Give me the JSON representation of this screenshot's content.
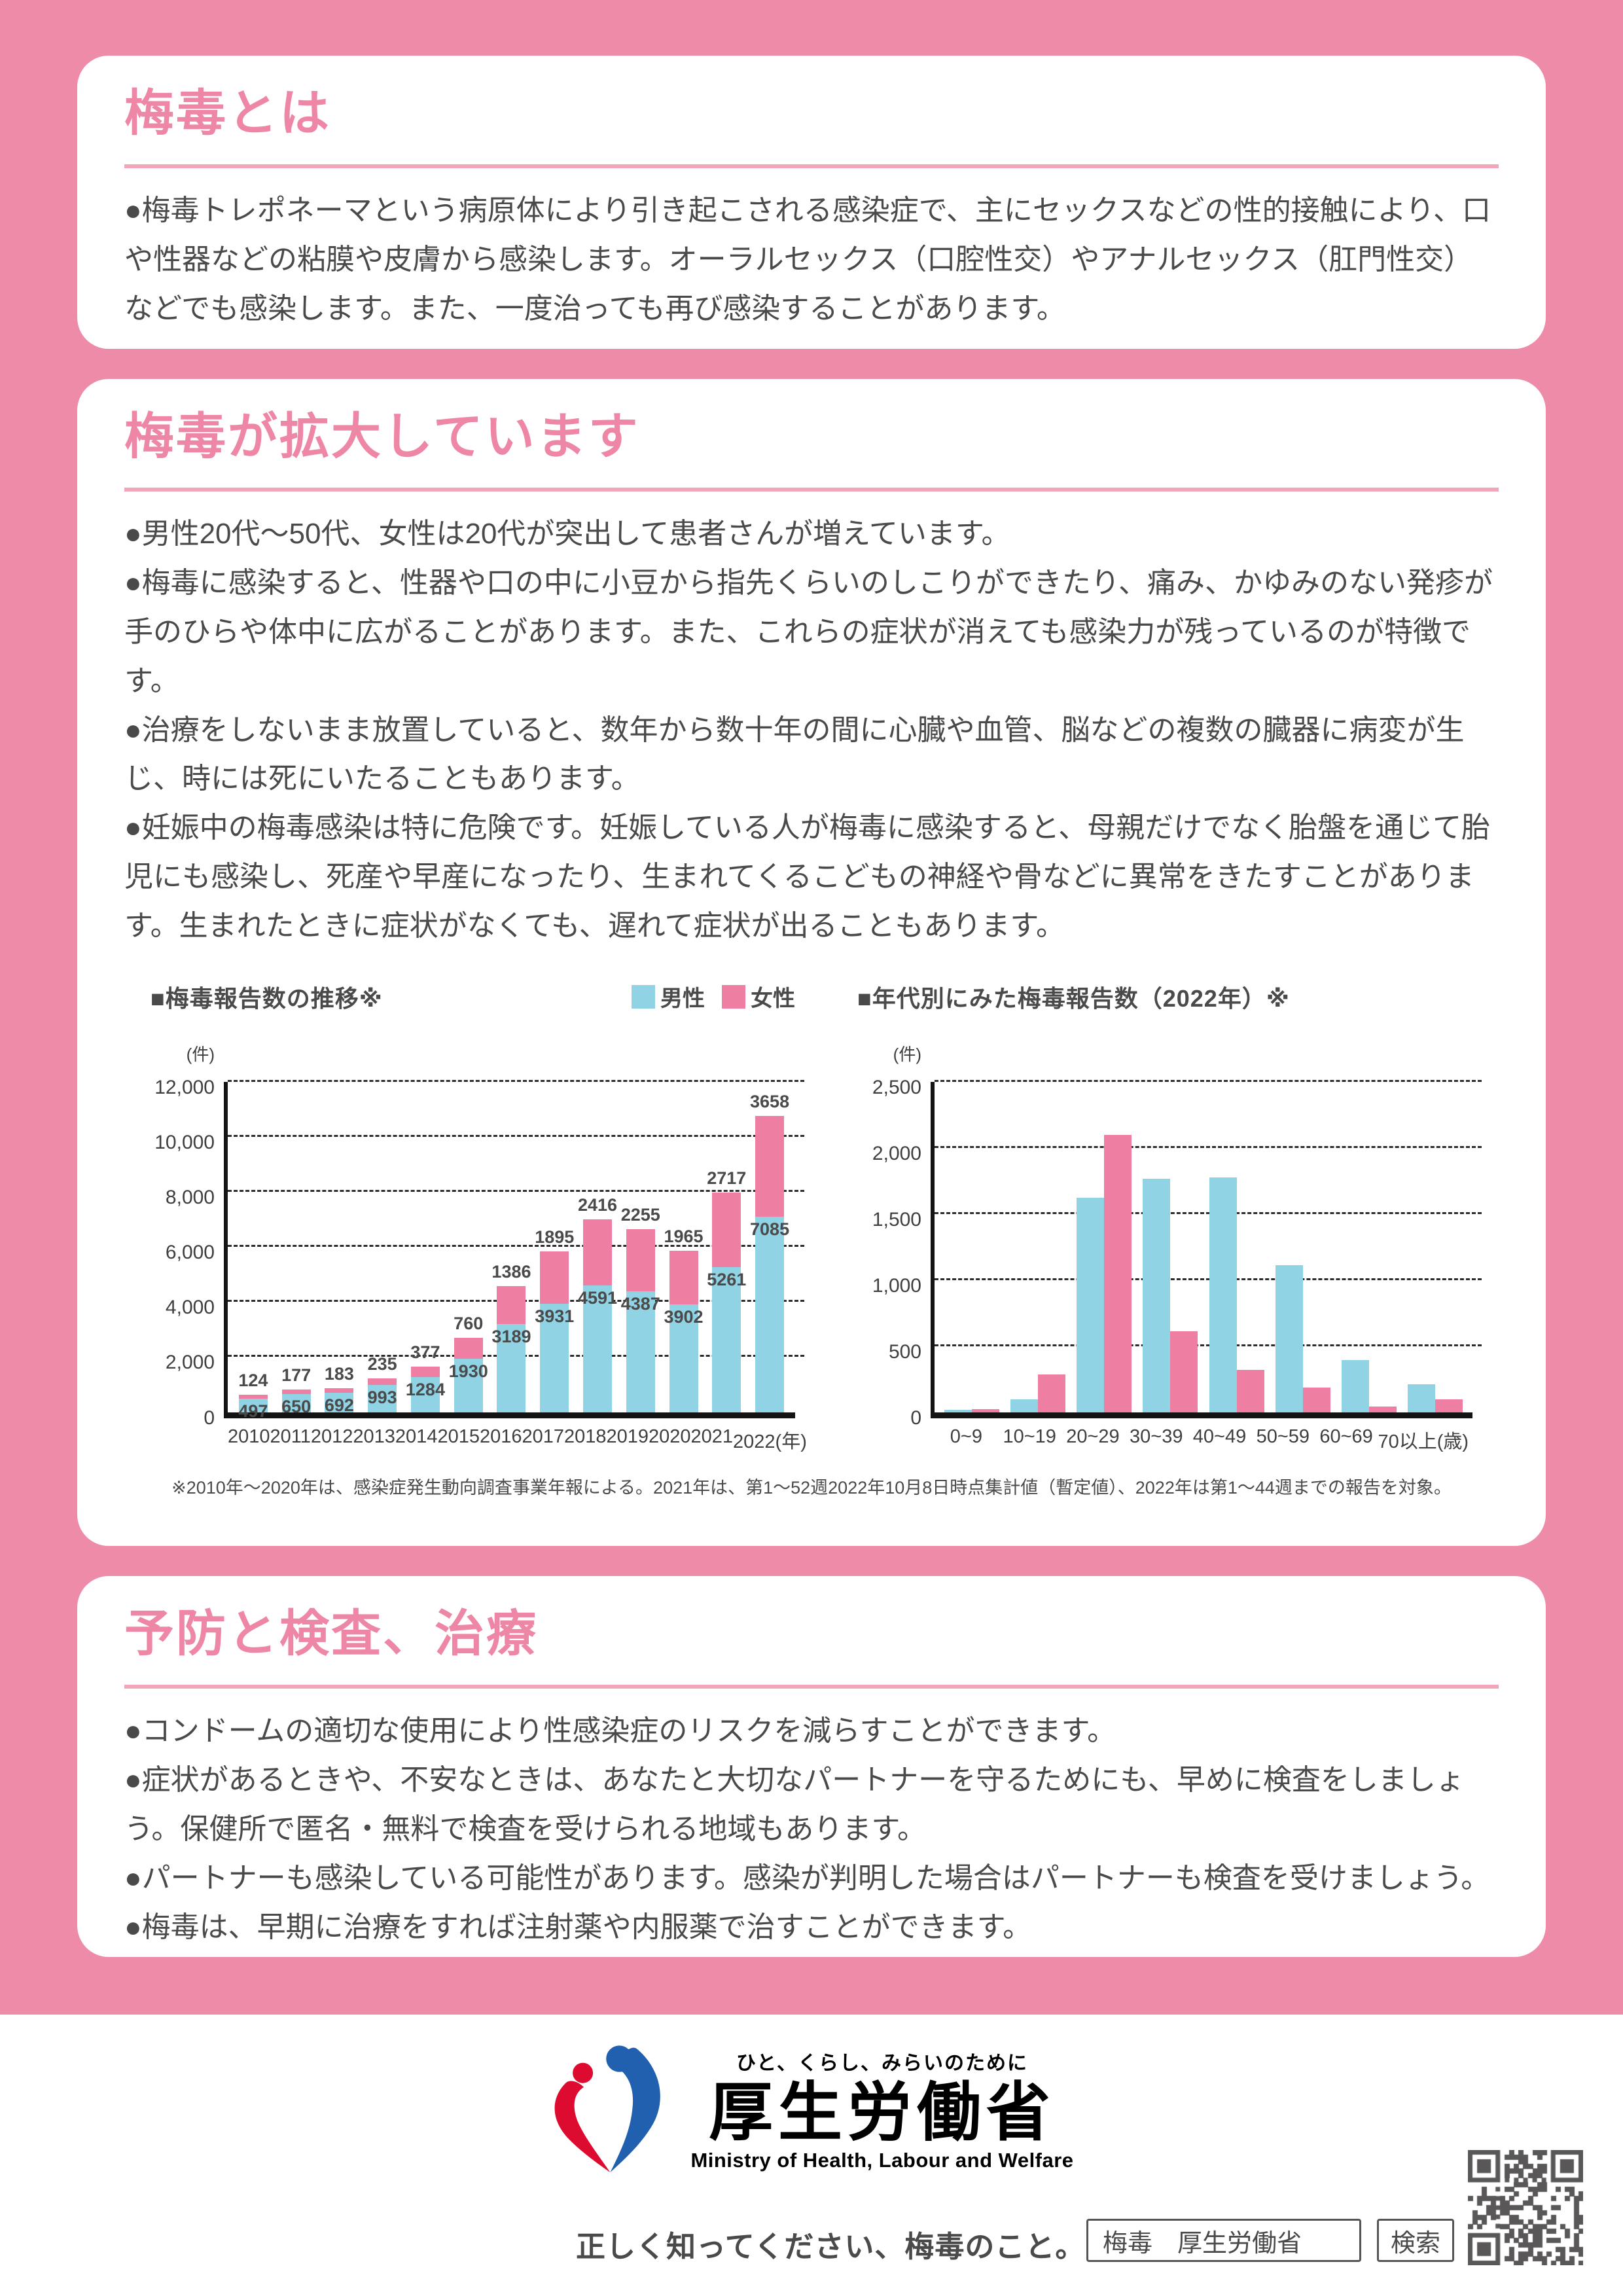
{
  "colors": {
    "background_pink": "#ed8ba8",
    "heading_pink": "#ee86a5",
    "rule_pink": "#f2a6ba",
    "male_blue": "#8fd3e5",
    "female_pink": "#ee7fa3",
    "text_gray": "#4a4a4a",
    "logo_red": "#dd0b2f",
    "logo_blue": "#2060ae",
    "qr_gray": "#595757"
  },
  "sections": [
    {
      "title": "梅毒とは",
      "paragraphs": [
        "●梅毒トレポネーマという病原体により引き起こされる感染症で、主にセックスなどの性的接触により、口や性器などの粘膜や皮膚から感染します。オーラルセックス（口腔性交）やアナルセックス（肛門性交）などでも感染します。また、一度治っても再び感染することがあります。"
      ]
    },
    {
      "title": "梅毒が拡大しています",
      "paragraphs": [
        "●男性20代～50代、女性は20代が突出して患者さんが増えています。",
        "●梅毒に感染すると、性器や口の中に小豆から指先くらいのしこりができたり、痛み、かゆみのない発疹が手のひらや体中に広がることがあります。また、これらの症状が消えても感染力が残っているのが特徴です。",
        "●治療をしないまま放置していると、数年から数十年の間に心臓や血管、脳などの複数の臓器に病変が生じ、時には死にいたることもあります。",
        "●妊娠中の梅毒感染は特に危険です。妊娠している人が梅毒に感染すると、母親だけでなく胎盤を通じて胎児にも感染し、死産や早産になったり、生まれてくるこどもの神経や骨などに異常をきたすことがあります。生まれたときに症状がなくても、遅れて症状が出ることもあります。"
      ]
    },
    {
      "title": "予防と検査、治療",
      "paragraphs": [
        "●コンドームの適切な使用により性感染症のリスクを減らすことができます。",
        "●症状があるときや、不安なときは、あなたと大切なパートナーを守るためにも、早めに検査をしましょう。保健所で匿名・無料で検査を受けられる地域もあります。",
        "●パートナーも感染している可能性があります。感染が判明した場合はパートナーも検査を受けましょう。",
        "●梅毒は、早期に治療をすれば注射薬や内服薬で治すことができます。"
      ]
    }
  ],
  "chart_note": "※2010年～2020年は、感染症発生動向調査事業年報による。2021年は、第1～52週2022年10月8日時点集計値（暫定値）、2022年は第1～44週までの報告を対象。",
  "chart_data": [
    {
      "type": "bar",
      "variant": "stacked",
      "title": "■梅毒報告数の推移※",
      "unit_label": "(件)",
      "legend_visible": true,
      "categories": [
        "2010",
        "2011",
        "2012",
        "2013",
        "2014",
        "2015",
        "2016",
        "2017",
        "2018",
        "2019",
        "2020",
        "2021",
        "2022"
      ],
      "x_suffix": "(年)",
      "series": [
        {
          "name": "男性",
          "color": "#8fd3e5",
          "values": [
            497,
            650,
            692,
            993,
            1284,
            1930,
            3189,
            3931,
            4591,
            4387,
            3902,
            5261,
            7085
          ]
        },
        {
          "name": "女性",
          "color": "#ee7fa3",
          "values": [
            124,
            177,
            183,
            235,
            377,
            760,
            1386,
            1895,
            2416,
            2255,
            1965,
            2717,
            3658
          ]
        }
      ],
      "show_value_labels": true,
      "ylim": [
        0,
        12000
      ],
      "ytick_step": 2000,
      "grid": true,
      "legend_position": "top-right"
    },
    {
      "type": "bar",
      "variant": "grouped",
      "title": "■年代別にみた梅毒報告数（2022年）※",
      "unit_label": "(件)",
      "legend_visible": false,
      "categories": [
        "0~9",
        "10~19",
        "20~29",
        "30~39",
        "40~49",
        "50~59",
        "60~69",
        "70以上(歳)"
      ],
      "x_suffix": "",
      "series": [
        {
          "name": "男性",
          "color": "#8fd3e5",
          "values": [
            20,
            95,
            1620,
            1765,
            1775,
            1110,
            395,
            210
          ]
        },
        {
          "name": "女性",
          "color": "#ee7fa3",
          "values": [
            25,
            285,
            2095,
            610,
            320,
            185,
            40,
            95
          ]
        }
      ],
      "show_value_labels": false,
      "ylim": [
        0,
        2500
      ],
      "ytick_step": 500,
      "grid": true,
      "legend_position": "none"
    }
  ],
  "footer": {
    "logo_tagline": "ひと、くらし、みらいのために",
    "ministry_ja": "厚生労働省",
    "ministry_en": "Ministry of Health, Labour and Welfare",
    "message": "正しく知ってください、梅毒のこと。",
    "search_query": "梅毒　厚生労働省",
    "search_button": "検索"
  }
}
